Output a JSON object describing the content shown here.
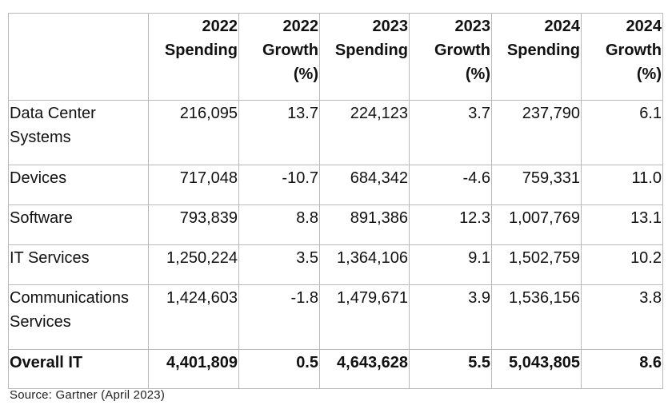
{
  "table": {
    "headers": [
      "",
      "2022 Spending",
      "2022 Growth (%)",
      "2023 Spending",
      "2023 Growth (%)",
      "2024 Spending",
      "2024 Growth (%)"
    ],
    "rows": [
      [
        "Data Center Systems",
        "216,095",
        "13.7",
        "224,123",
        "3.7",
        "237,790",
        "6.1"
      ],
      [
        "Devices",
        "717,048",
        "-10.7",
        "684,342",
        "-4.6",
        "759,331",
        "11.0"
      ],
      [
        "Software",
        "793,839",
        "8.8",
        "891,386",
        "12.3",
        "1,007,769",
        "13.1"
      ],
      [
        "IT Services",
        "1,250,224",
        "3.5",
        "1,364,106",
        "9.1",
        "1,502,759",
        "10.2"
      ],
      [
        "Communications Services",
        "1,424,603",
        "-1.8",
        "1,479,671",
        "3.9",
        "1,536,156",
        "3.8"
      ],
      [
        "Overall IT",
        "4,401,809",
        "0.5",
        "4,643,628",
        "5.5",
        "5,043,805",
        "8.6"
      ]
    ]
  },
  "source": "Source: Gartner (April 2023)"
}
